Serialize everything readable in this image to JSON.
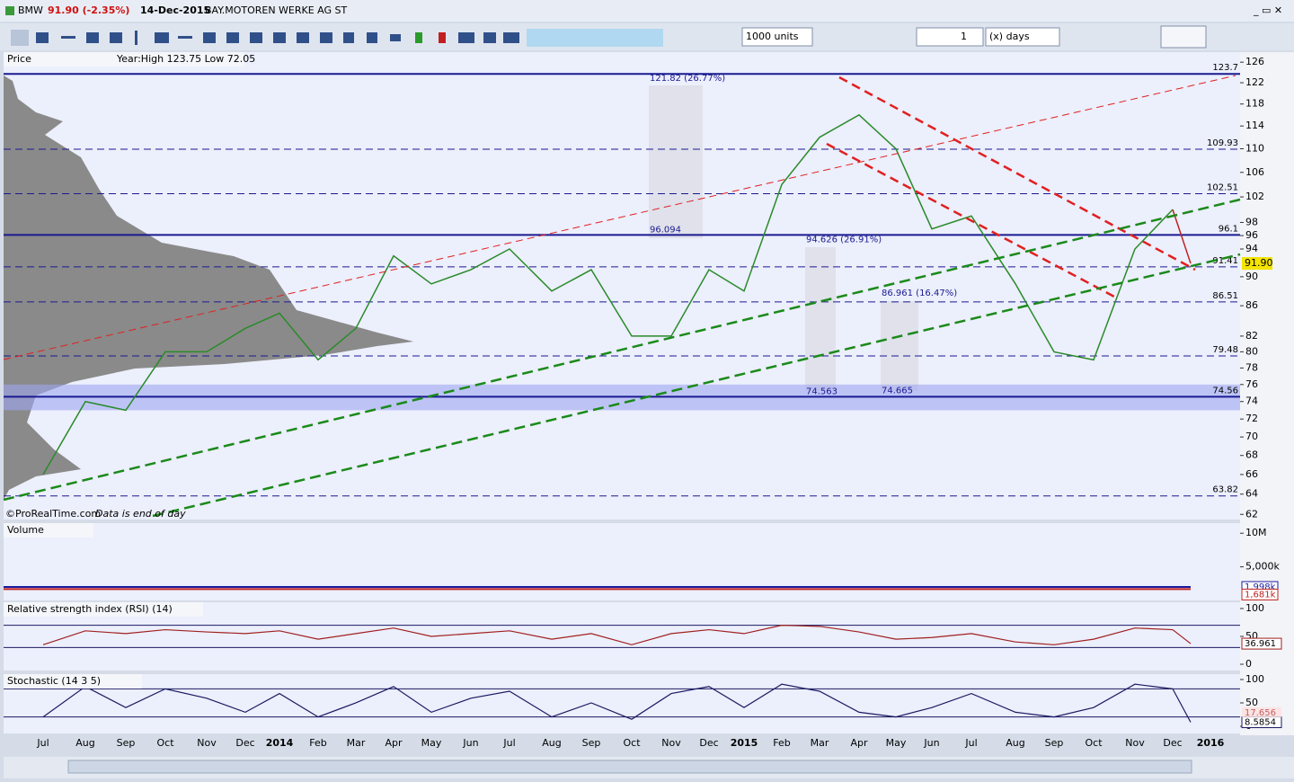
{
  "title_bar": {
    "symbol": "BMW",
    "change": "91.90 (-2.35%)",
    "date": "14-Dec-2015",
    "name": "BAY.MOTOREN WERKE AG ST"
  },
  "toolbar": {
    "units": "1000 units",
    "period_count": "1",
    "period_unit": "(x) days"
  },
  "chart_data": {
    "type": "line",
    "x_labels": [
      "Jul",
      "Aug",
      "Sep",
      "Oct",
      "Nov",
      "Dec",
      "2014",
      "Feb",
      "Mar",
      "Apr",
      "May",
      "Jun",
      "Jul",
      "Aug",
      "Sep",
      "Oct",
      "Nov",
      "Dec",
      "2015",
      "Feb",
      "Mar",
      "Apr",
      "May",
      "Jun",
      "Jul",
      "Aug",
      "Sep",
      "Oct",
      "Nov",
      "Dec",
      "2016"
    ],
    "price": {
      "name": "Price",
      "info": "Year:High 123.75 Low 72.05",
      "color": "#2a8a2a",
      "log_scale": true,
      "values": [
        66,
        74,
        73,
        80,
        80,
        83,
        85,
        79,
        83,
        93,
        89,
        91,
        94,
        88,
        91,
        82,
        82,
        91,
        88,
        104,
        112,
        116,
        110,
        97,
        99,
        89,
        80,
        79,
        94,
        100,
        null
      ],
      "last": {
        "value": 91.9,
        "label": "91.90"
      },
      "ylim": [
        61.5,
        128
      ],
      "yticks": [
        126,
        122,
        118,
        114,
        110,
        106,
        102,
        98,
        96,
        94,
        90,
        86,
        82,
        80,
        78,
        76,
        74,
        72,
        70,
        68,
        66,
        64,
        62
      ],
      "levels": [
        {
          "value": 123.7,
          "style": "solid"
        },
        {
          "value": 109.93,
          "style": "dashed"
        },
        {
          "value": 102.51,
          "style": "dashed"
        },
        {
          "value": 96.1,
          "style": "solid"
        },
        {
          "value": 91.41,
          "style": "dashed"
        },
        {
          "value": 86.51,
          "style": "dashed"
        },
        {
          "value": 79.48,
          "style": "dashed"
        },
        {
          "value": 74.56,
          "style": "solid"
        },
        {
          "value": 63.82,
          "style": "dashed"
        }
      ],
      "support_zone": [
        73,
        76
      ],
      "annotations": [
        {
          "value": 121.82,
          "label": "121.82 (26.77%)"
        },
        {
          "value": 96.094,
          "label": "96.094"
        },
        {
          "value": 94.626,
          "label": "94.626 (26.91%)"
        },
        {
          "value": 86.961,
          "label": "86.961 (16.47%)"
        },
        {
          "value": 74.563,
          "label": "74.563"
        },
        {
          "value": 74.665,
          "label": "74.665"
        }
      ],
      "credit": "©ProRealTime.com",
      "note": "Data is end of day"
    },
    "volume": {
      "name": "Volume",
      "ylim": [
        0,
        11500000
      ],
      "yticks": [
        {
          "value": 10000000,
          "label": "10M"
        },
        {
          "value": 5000000,
          "label": "5,000k"
        }
      ],
      "tags": [
        {
          "value": 1998000,
          "label": "1,998k",
          "color": "#1a1aa0"
        },
        {
          "value": 1681000,
          "label": "1,681k",
          "color": "#c02020"
        }
      ]
    },
    "rsi": {
      "name": "Relative strength index (RSI) (14)",
      "color": "#a02020",
      "ylim": [
        -11.3,
        111.3
      ],
      "yticks": [
        100,
        50,
        0
      ],
      "guide_levels": [
        30,
        70
      ],
      "values": [
        35,
        60,
        55,
        62,
        58,
        55,
        60,
        45,
        55,
        65,
        50,
        55,
        60,
        45,
        55,
        35,
        55,
        62,
        55,
        70,
        68,
        58,
        45,
        48,
        55,
        40,
        35,
        45,
        65,
        62,
        null
      ],
      "last": 36.961
    },
    "stochastic": {
      "name": "Stochastic (14 3 5)",
      "color": "#1a1a60",
      "ylim": [
        -15.4,
        111.5
      ],
      "yticks": [
        100,
        50,
        0
      ],
      "guide_levels": [
        20,
        80
      ],
      "values": [
        20,
        85,
        40,
        80,
        60,
        30,
        70,
        20,
        50,
        85,
        30,
        60,
        75,
        20,
        50,
        15,
        70,
        85,
        40,
        90,
        75,
        30,
        20,
        40,
        70,
        30,
        20,
        40,
        90,
        80,
        null
      ],
      "signal_last": 17.656,
      "last": 8.5854
    }
  }
}
